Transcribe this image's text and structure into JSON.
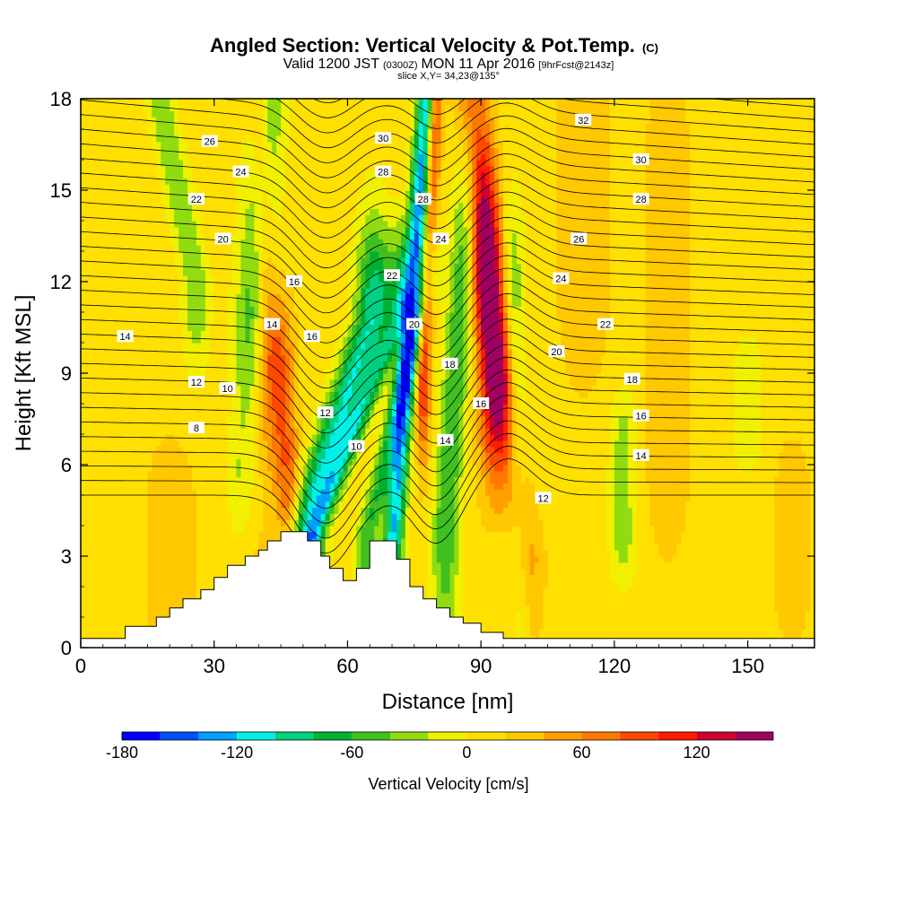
{
  "header": {
    "title": "Angled Section: Vertical Velocity & Pot.Temp.",
    "title_mark": "(C)",
    "valid_prefix": "Valid 1200 JST",
    "valid_utc": "(0300Z)",
    "valid_date": "MON 11 Apr 2016",
    "valid_fcst": "[9hrFcst@2143z]",
    "slice": "slice X,Y= 34,23@135°"
  },
  "chart_data": {
    "type": "heatmap",
    "xlabel": "Distance [nm]",
    "ylabel": "Height [Kft MSL]",
    "xlim": [
      0,
      165
    ],
    "ylim": [
      0,
      18
    ],
    "x_ticks": [
      0,
      30,
      60,
      90,
      120,
      150
    ],
    "y_ticks": [
      0,
      3,
      6,
      9,
      12,
      15,
      18
    ],
    "grid": false,
    "background_level": 10,
    "colorbar": {
      "label": "Vertical Velocity [cm/s]",
      "min": -180,
      "max": 160,
      "step": 20,
      "tick_values": [
        -180,
        -120,
        -60,
        0,
        60,
        120
      ],
      "colors": [
        "#0000ff",
        "#0050ff",
        "#00a0ff",
        "#00f0e8",
        "#00d080",
        "#00b030",
        "#40c020",
        "#90dc10",
        "#f0f000",
        "#ffe000",
        "#ffc800",
        "#ffa000",
        "#ff7800",
        "#ff4800",
        "#ff1c00",
        "#d00030",
        "#a00060"
      ]
    },
    "velocity_features": [
      {
        "x0": 50,
        "x1": 66,
        "y0": 4,
        "y1": 11,
        "sx": 4,
        "sy": 3,
        "value": -110
      },
      {
        "x0": 52,
        "x1": 72,
        "y0": 3.5,
        "y1": 11,
        "sx": 2.5,
        "sy": 2.5,
        "value": -80
      },
      {
        "x0": 70,
        "x1": 78,
        "y0": 3,
        "y1": 18.5,
        "sx": 2.2,
        "sy": 2,
        "value": -130
      },
      {
        "x0": 64,
        "x1": 78,
        "y0": 3.5,
        "y1": 12,
        "sx": 2.5,
        "sy": 3,
        "value": -70
      },
      {
        "x0": 82,
        "x1": 88,
        "y0": 4,
        "y1": 17,
        "sx": 3,
        "sy": 4,
        "value": -70
      },
      {
        "x0": 77,
        "x1": 80,
        "y0": 9,
        "y1": 18.5,
        "sx": 1.6,
        "sy": 3,
        "value": 100
      },
      {
        "x0": 93,
        "x1": 88,
        "y0": 9,
        "y1": 18.5,
        "sx": 3.5,
        "sy": 3.5,
        "value": 130
      },
      {
        "x0": 100,
        "x1": 92,
        "y0": 3,
        "y1": 12,
        "sx": 3.5,
        "sy": 3,
        "value": 60
      },
      {
        "x0": 99,
        "x1": 97,
        "y0": 2,
        "y1": 12,
        "sx": 2.5,
        "sy": 3,
        "value": -50
      },
      {
        "x0": 36,
        "x1": 42,
        "y0": 6,
        "y1": 18,
        "sx": 4,
        "sy": 3.5,
        "value": -60
      },
      {
        "x0": 26,
        "x1": 17,
        "y0": 12,
        "y1": 18.5,
        "sx": 3,
        "sy": 3,
        "value": -50
      },
      {
        "x0": 47,
        "x1": 45,
        "y0": 4,
        "y1": 9,
        "sx": 3,
        "sy": 2.5,
        "value": 70
      },
      {
        "x0": 42,
        "x1": 40,
        "y0": 10,
        "y1": 18.5,
        "sx": 2.5,
        "sy": 3,
        "value": 50
      },
      {
        "x0": 37,
        "x1": 37,
        "y0": 2,
        "y1": 7,
        "sx": 6,
        "sy": 2.5,
        "value": 30
      },
      {
        "x0": 20,
        "x1": 20,
        "y0": 1,
        "y1": 5,
        "sx": 8,
        "sy": 3,
        "value": 15
      },
      {
        "x0": 122,
        "x1": 122,
        "y0": 3.5,
        "y1": 7,
        "sx": 3,
        "sy": 1.5,
        "value": -40
      },
      {
        "x0": 132,
        "x1": 132,
        "y0": 7,
        "y1": 15,
        "sx": 5,
        "sy": 4,
        "value": 30
      },
      {
        "x0": 113,
        "x1": 113,
        "y0": 12,
        "y1": 18,
        "sx": 6,
        "sy": 4,
        "value": 25
      },
      {
        "x0": 160,
        "x1": 160,
        "y0": 2,
        "y1": 5,
        "sx": 4,
        "sy": 2,
        "value": 25
      },
      {
        "x0": 150,
        "x1": 150,
        "y0": 7,
        "y1": 9,
        "sx": 4,
        "sy": 1.5,
        "value": -20
      }
    ],
    "terrain": [
      [
        0,
        0.3
      ],
      [
        10,
        0.7
      ],
      [
        15,
        0.7
      ],
      [
        17,
        1.0
      ],
      [
        20,
        1.3
      ],
      [
        23,
        1.6
      ],
      [
        27,
        1.9
      ],
      [
        30,
        2.3
      ],
      [
        33,
        2.7
      ],
      [
        37,
        3.0
      ],
      [
        40,
        3.2
      ],
      [
        42,
        3.5
      ],
      [
        45,
        3.8
      ],
      [
        48,
        3.8
      ],
      [
        51,
        3.5
      ],
      [
        54,
        3.0
      ],
      [
        56,
        2.6
      ],
      [
        59,
        2.2
      ],
      [
        62,
        2.6
      ],
      [
        65,
        3.5
      ],
      [
        68,
        3.5
      ],
      [
        71,
        2.9
      ],
      [
        74,
        2.0
      ],
      [
        77,
        1.6
      ],
      [
        80,
        1.3
      ],
      [
        83,
        1.0
      ],
      [
        86,
        0.8
      ],
      [
        90,
        0.5
      ],
      [
        95,
        0.3
      ],
      [
        165,
        0.3
      ]
    ],
    "theta_contour_labels": [
      {
        "text": "8",
        "x": 26,
        "y": 7.2
      },
      {
        "text": "10",
        "x": 33,
        "y": 8.5
      },
      {
        "text": "12",
        "x": 26,
        "y": 8.7
      },
      {
        "text": "14",
        "x": 10,
        "y": 10.2
      },
      {
        "text": "14",
        "x": 43,
        "y": 10.6
      },
      {
        "text": "16",
        "x": 48,
        "y": 12.0
      },
      {
        "text": "16",
        "x": 52,
        "y": 10.2
      },
      {
        "text": "12",
        "x": 55,
        "y": 7.7
      },
      {
        "text": "10",
        "x": 62,
        "y": 6.6
      },
      {
        "text": "20",
        "x": 32,
        "y": 13.4
      },
      {
        "text": "22",
        "x": 26,
        "y": 14.7
      },
      {
        "text": "24",
        "x": 36,
        "y": 15.6
      },
      {
        "text": "26",
        "x": 29,
        "y": 16.6
      },
      {
        "text": "30",
        "x": 68,
        "y": 16.7
      },
      {
        "text": "28",
        "x": 68,
        "y": 15.6
      },
      {
        "text": "22",
        "x": 70,
        "y": 12.2
      },
      {
        "text": "28",
        "x": 77,
        "y": 14.7
      },
      {
        "text": "24",
        "x": 81,
        "y": 13.4
      },
      {
        "text": "20",
        "x": 75,
        "y": 10.6
      },
      {
        "text": "18",
        "x": 83,
        "y": 9.3
      },
      {
        "text": "16",
        "x": 90,
        "y": 8.0
      },
      {
        "text": "14",
        "x": 82,
        "y": 6.8
      },
      {
        "text": "32",
        "x": 113,
        "y": 17.3
      },
      {
        "text": "30",
        "x": 126,
        "y": 16.0
      },
      {
        "text": "28",
        "x": 126,
        "y": 14.7
      },
      {
        "text": "26",
        "x": 112,
        "y": 13.4
      },
      {
        "text": "24",
        "x": 108,
        "y": 12.1
      },
      {
        "text": "22",
        "x": 118,
        "y": 10.6
      },
      {
        "text": "20",
        "x": 107,
        "y": 9.7
      },
      {
        "text": "18",
        "x": 124,
        "y": 8.8
      },
      {
        "text": "16",
        "x": 126,
        "y": 7.6
      },
      {
        "text": "14",
        "x": 126,
        "y": 6.3
      },
      {
        "text": "12",
        "x": 104,
        "y": 4.9
      }
    ]
  }
}
